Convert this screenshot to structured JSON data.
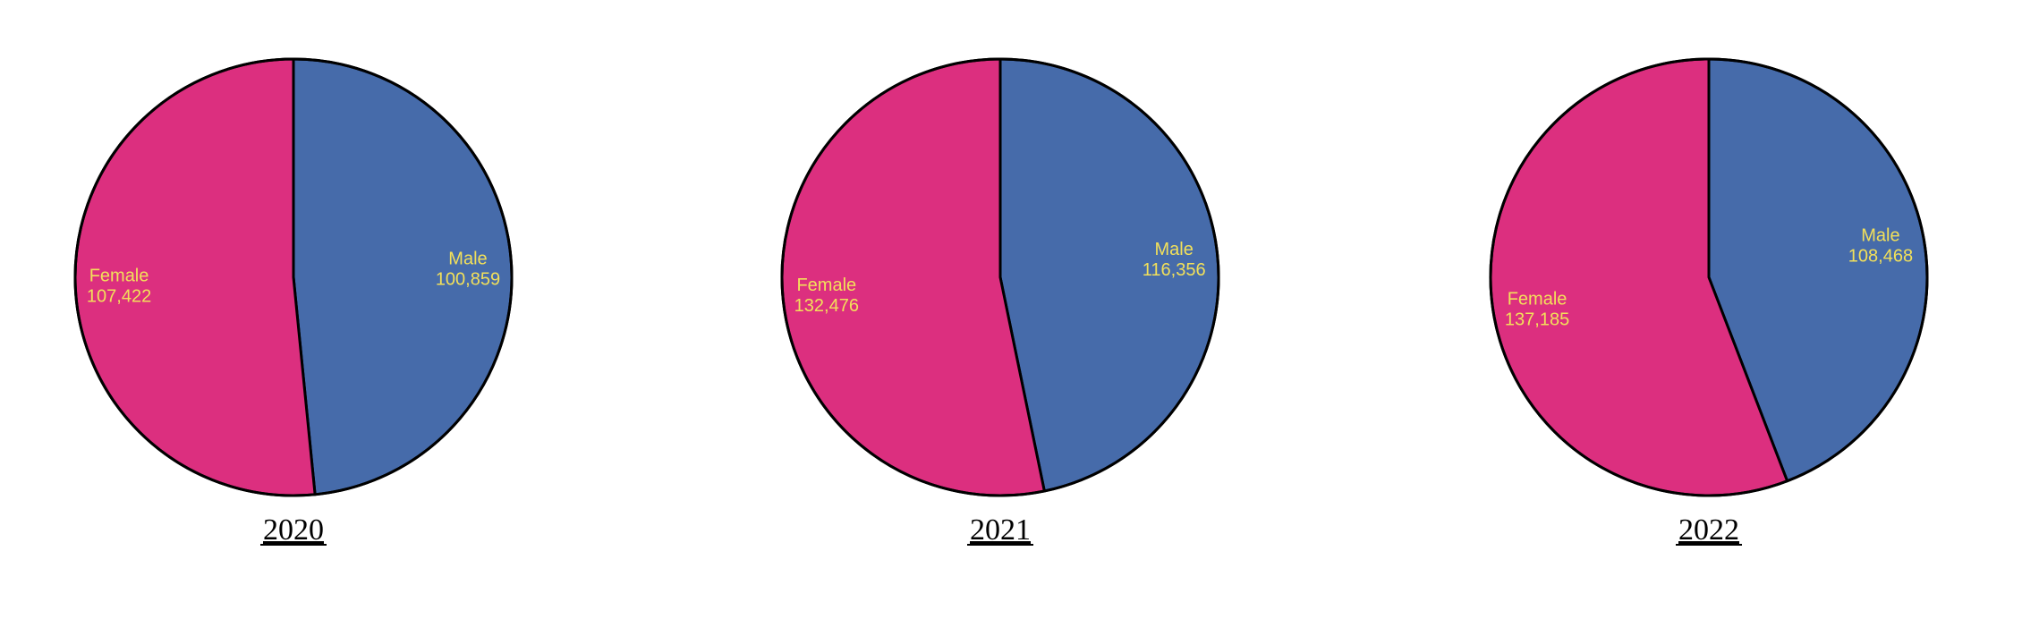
{
  "colors": {
    "Male": "#466baa",
    "Female": "#dc2f7f",
    "label": "#f2e05a"
  },
  "chart_data": [
    {
      "type": "pie",
      "title": "2020",
      "slices": [
        {
          "name": "Male",
          "value": 100859,
          "value_label": "100,859"
        },
        {
          "name": "Female",
          "value": 107422,
          "value_label": "107,422"
        }
      ]
    },
    {
      "type": "pie",
      "title": "2021",
      "slices": [
        {
          "name": "Male",
          "value": 116356,
          "value_label": "116,356"
        },
        {
          "name": "Female",
          "value": 132476,
          "value_label": "132,476"
        }
      ]
    },
    {
      "type": "pie",
      "title": "2022",
      "slices": [
        {
          "name": "Male",
          "value": 108468,
          "value_label": "108,468"
        },
        {
          "name": "Female",
          "value": 137185,
          "value_label": "137,185"
        }
      ]
    }
  ]
}
